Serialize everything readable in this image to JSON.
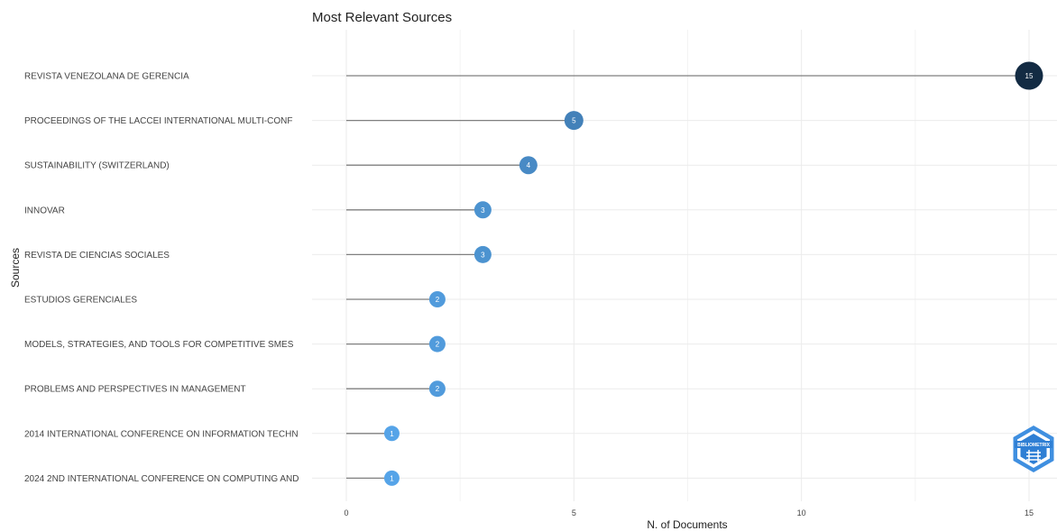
{
  "chart_data": {
    "type": "lollipop",
    "title": "Most Relevant Sources",
    "xlabel": "N. of Documents",
    "ylabel": "Sources",
    "xlim": [
      0,
      15
    ],
    "xticks": [
      0,
      5,
      10,
      15
    ],
    "grid": true,
    "categories": [
      "REVISTA VENEZOLANA DE GERENCIA",
      "PROCEEDINGS OF THE LACCEI INTERNATIONAL MULTI-CONF",
      "SUSTAINABILITY (SWITZERLAND)",
      "INNOVAR",
      "REVISTA DE CIENCIAS SOCIALES",
      "ESTUDIOS GERENCIALES",
      "MODELS, STRATEGIES, AND TOOLS FOR COMPETITIVE SMES",
      "PROBLEMS AND PERSPECTIVES IN MANAGEMENT",
      "2014 INTERNATIONAL CONFERENCE ON INFORMATION TECHN",
      "2024 2ND INTERNATIONAL CONFERENCE ON COMPUTING AND"
    ],
    "values": [
      15,
      5,
      4,
      3,
      3,
      2,
      2,
      2,
      1,
      1
    ],
    "colors": {
      "low": "#56a4e8",
      "high": "#132b43",
      "stem": "#7f7f7f",
      "grid": "#ebebeb"
    }
  },
  "logo": {
    "icon": "bibliometrix-logo-icon",
    "text": "BIBLIOMETRIX"
  }
}
